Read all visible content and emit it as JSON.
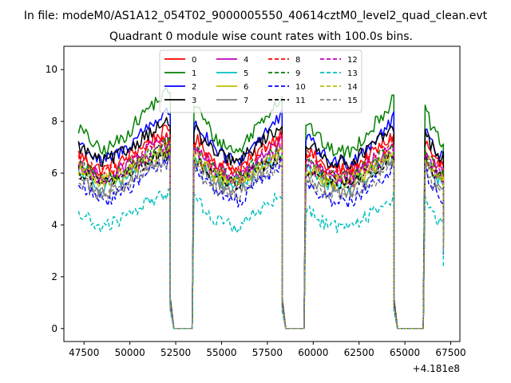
{
  "figure": {
    "suptitle": "In file: modeM0/AS1A12_054T02_9000005550_40614cztM0_level2_quad_clean.evt",
    "title": "Quadrant 0 module wise count rates with 100.0s bins.",
    "offset_text": "+4.181e8"
  },
  "chart_data": {
    "type": "line",
    "title": "Quadrant 0 module wise count rates with 100.0s bins.",
    "xlabel": "",
    "ylabel": "",
    "x_offset": 418100000,
    "xlim": [
      46400,
      68000
    ],
    "ylim": [
      -0.5,
      10.9
    ],
    "xticks": [
      47500,
      50000,
      52500,
      55000,
      57500,
      60000,
      62500,
      65000,
      67500
    ],
    "xtick_labels": [
      "47500",
      "50000",
      "52500",
      "55000",
      "57500",
      "60000",
      "62500",
      "65000",
      "67500"
    ],
    "yticks": [
      0,
      2,
      4,
      6,
      8,
      10
    ],
    "ytick_labels": [
      "0",
      "2",
      "4",
      "6",
      "8",
      "10"
    ],
    "grid": false,
    "legend_placement": "top-center",
    "legend_columns": 4,
    "segments": [
      {
        "x_start": 47200,
        "x_end": 52200,
        "shape": [
          0.4,
          0.0,
          0.25,
          0.7,
          1.0
        ]
      },
      {
        "x_start": 53500,
        "x_end": 58300,
        "shape": [
          0.8,
          0.2,
          0.0,
          0.5,
          0.9
        ]
      },
      {
        "x_start": 59600,
        "x_end": 64400,
        "shape": [
          0.5,
          0.05,
          0.0,
          0.4,
          0.85
        ]
      },
      {
        "x_start": 66100,
        "x_end": 67100,
        "shape": [
          0.7,
          0.3,
          0.1
        ]
      }
    ],
    "gaps": [
      {
        "x_fall": 52200,
        "x_zero_start": 52400,
        "x_zero_end": 53400
      },
      {
        "x_fall": 58300,
        "x_zero_start": 58500,
        "x_zero_end": 59500
      },
      {
        "x_fall": 64400,
        "x_zero_start": 64600,
        "x_zero_end": 66000
      }
    ],
    "series": [
      {
        "name": "0",
        "color": "#ff0000",
        "dash": "solid",
        "base": 6.9,
        "amplitude": 0.8
      },
      {
        "name": "1",
        "color": "#008000",
        "dash": "solid",
        "base": 8.0,
        "amplitude": 1.2
      },
      {
        "name": "2",
        "color": "#0000ff",
        "dash": "solid",
        "base": 7.4,
        "amplitude": 1.0
      },
      {
        "name": "3",
        "color": "#000000",
        "dash": "solid",
        "base": 7.2,
        "amplitude": 0.8
      },
      {
        "name": "4",
        "color": "#bf00bf",
        "dash": "solid",
        "base": 6.6,
        "amplitude": 0.8
      },
      {
        "name": "5",
        "color": "#00bfbf",
        "dash": "solid",
        "base": 6.2,
        "amplitude": 0.7
      },
      {
        "name": "6",
        "color": "#bfbf00",
        "dash": "solid",
        "base": 6.3,
        "amplitude": 0.7
      },
      {
        "name": "7",
        "color": "#808080",
        "dash": "solid",
        "base": 6.0,
        "amplitude": 0.8
      },
      {
        "name": "8",
        "color": "#ff0000",
        "dash": "dashed",
        "base": 6.7,
        "amplitude": 0.7
      },
      {
        "name": "9",
        "color": "#008000",
        "dash": "dashed",
        "base": 6.5,
        "amplitude": 0.7
      },
      {
        "name": "10",
        "color": "#0000ff",
        "dash": "dashed",
        "base": 5.7,
        "amplitude": 0.8
      },
      {
        "name": "11",
        "color": "#000000",
        "dash": "dashed",
        "base": 6.2,
        "amplitude": 0.6
      },
      {
        "name": "12",
        "color": "#bf00bf",
        "dash": "dashed",
        "base": 6.4,
        "amplitude": 0.7
      },
      {
        "name": "13",
        "color": "#00bfbf",
        "dash": "dashed",
        "base": 4.6,
        "amplitude": 0.7
      },
      {
        "name": "14",
        "color": "#bfbf00",
        "dash": "dashed",
        "base": 6.3,
        "amplitude": 0.6
      },
      {
        "name": "15",
        "color": "#808080",
        "dash": "dashed",
        "base": 5.8,
        "amplitude": 0.7
      }
    ]
  }
}
